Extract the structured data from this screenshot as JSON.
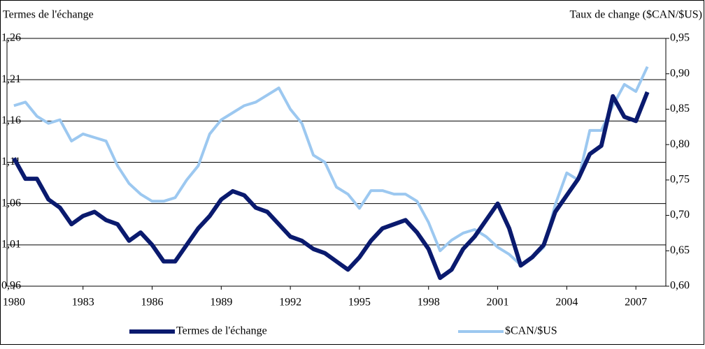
{
  "chart_data": {
    "type": "line",
    "y_label": "Termes de l'échange",
    "y2_label": "Taux de change ($CAN/$US)",
    "x": [
      1980.0,
      1980.5,
      1981.0,
      1981.5,
      1982.0,
      1982.5,
      1983.0,
      1983.5,
      1984.0,
      1984.5,
      1985.0,
      1985.5,
      1986.0,
      1986.5,
      1987.0,
      1987.5,
      1988.0,
      1988.5,
      1989.0,
      1989.5,
      1990.0,
      1990.5,
      1991.0,
      1991.5,
      1992.0,
      1992.5,
      1993.0,
      1993.5,
      1994.0,
      1994.5,
      1995.0,
      1995.5,
      1996.0,
      1996.5,
      1997.0,
      1997.5,
      1998.0,
      1998.5,
      1999.0,
      1999.5,
      2000.0,
      2000.5,
      2001.0,
      2001.5,
      2002.0,
      2002.5,
      2003.0,
      2003.5,
      2004.0,
      2004.5,
      2005.0,
      2005.5,
      2006.0,
      2006.5,
      2007.0,
      2007.5
    ],
    "series": [
      {
        "name": "Termes de l'échange",
        "color": "#0a1a6e",
        "axis": "y",
        "values": [
          1.115,
          1.09,
          1.09,
          1.065,
          1.055,
          1.035,
          1.045,
          1.05,
          1.04,
          1.035,
          1.015,
          1.025,
          1.01,
          0.99,
          0.99,
          1.01,
          1.03,
          1.045,
          1.065,
          1.075,
          1.07,
          1.055,
          1.05,
          1.035,
          1.02,
          1.015,
          1.005,
          1.0,
          0.99,
          0.98,
          0.995,
          1.015,
          1.03,
          1.035,
          1.04,
          1.025,
          1.005,
          0.97,
          0.98,
          1.005,
          1.02,
          1.04,
          1.06,
          1.03,
          0.985,
          0.995,
          1.01,
          1.05,
          1.07,
          1.09,
          1.12,
          1.13,
          1.19,
          1.165,
          1.16,
          1.195
        ]
      },
      {
        "name": "$CAN/$US",
        "color": "#9cc8f0",
        "axis": "y2",
        "values": [
          0.855,
          0.86,
          0.84,
          0.83,
          0.835,
          0.805,
          0.815,
          0.81,
          0.805,
          0.77,
          0.745,
          0.73,
          0.72,
          0.72,
          0.725,
          0.75,
          0.77,
          0.815,
          0.835,
          0.845,
          0.855,
          0.86,
          0.87,
          0.88,
          0.85,
          0.83,
          0.785,
          0.775,
          0.74,
          0.73,
          0.71,
          0.735,
          0.735,
          0.73,
          0.73,
          0.72,
          0.69,
          0.65,
          0.665,
          0.675,
          0.68,
          0.67,
          0.655,
          0.645,
          0.63,
          0.64,
          0.655,
          0.715,
          0.76,
          0.75,
          0.82,
          0.82,
          0.855,
          0.885,
          0.875,
          0.91
        ]
      }
    ],
    "xlim": [
      1979.7,
      2008.3
    ],
    "xticks": [
      1980,
      1983,
      1986,
      1989,
      1992,
      1995,
      1998,
      2001,
      2004,
      2007
    ],
    "ylim": [
      0.96,
      1.26
    ],
    "yticks": [
      {
        "value": 0.96,
        "label": "0,96"
      },
      {
        "value": 1.01,
        "label": "1,01"
      },
      {
        "value": 1.06,
        "label": "1,06"
      },
      {
        "value": 1.11,
        "label": "1,11"
      },
      {
        "value": 1.16,
        "label": "1,16"
      },
      {
        "value": 1.21,
        "label": "1,21"
      },
      {
        "value": 1.26,
        "label": "1,26"
      }
    ],
    "y2lim": [
      0.6,
      0.95
    ],
    "y2ticks": [
      {
        "value": 0.6,
        "label": "0,60"
      },
      {
        "value": 0.65,
        "label": "0,65"
      },
      {
        "value": 0.7,
        "label": "0,70"
      },
      {
        "value": 0.75,
        "label": "0,75"
      },
      {
        "value": 0.8,
        "label": "0,80"
      },
      {
        "value": 0.85,
        "label": "0,85"
      },
      {
        "value": 0.9,
        "label": "0,90"
      },
      {
        "value": 0.95,
        "label": "0,95"
      }
    ],
    "grid": true,
    "legend": "bottom"
  }
}
